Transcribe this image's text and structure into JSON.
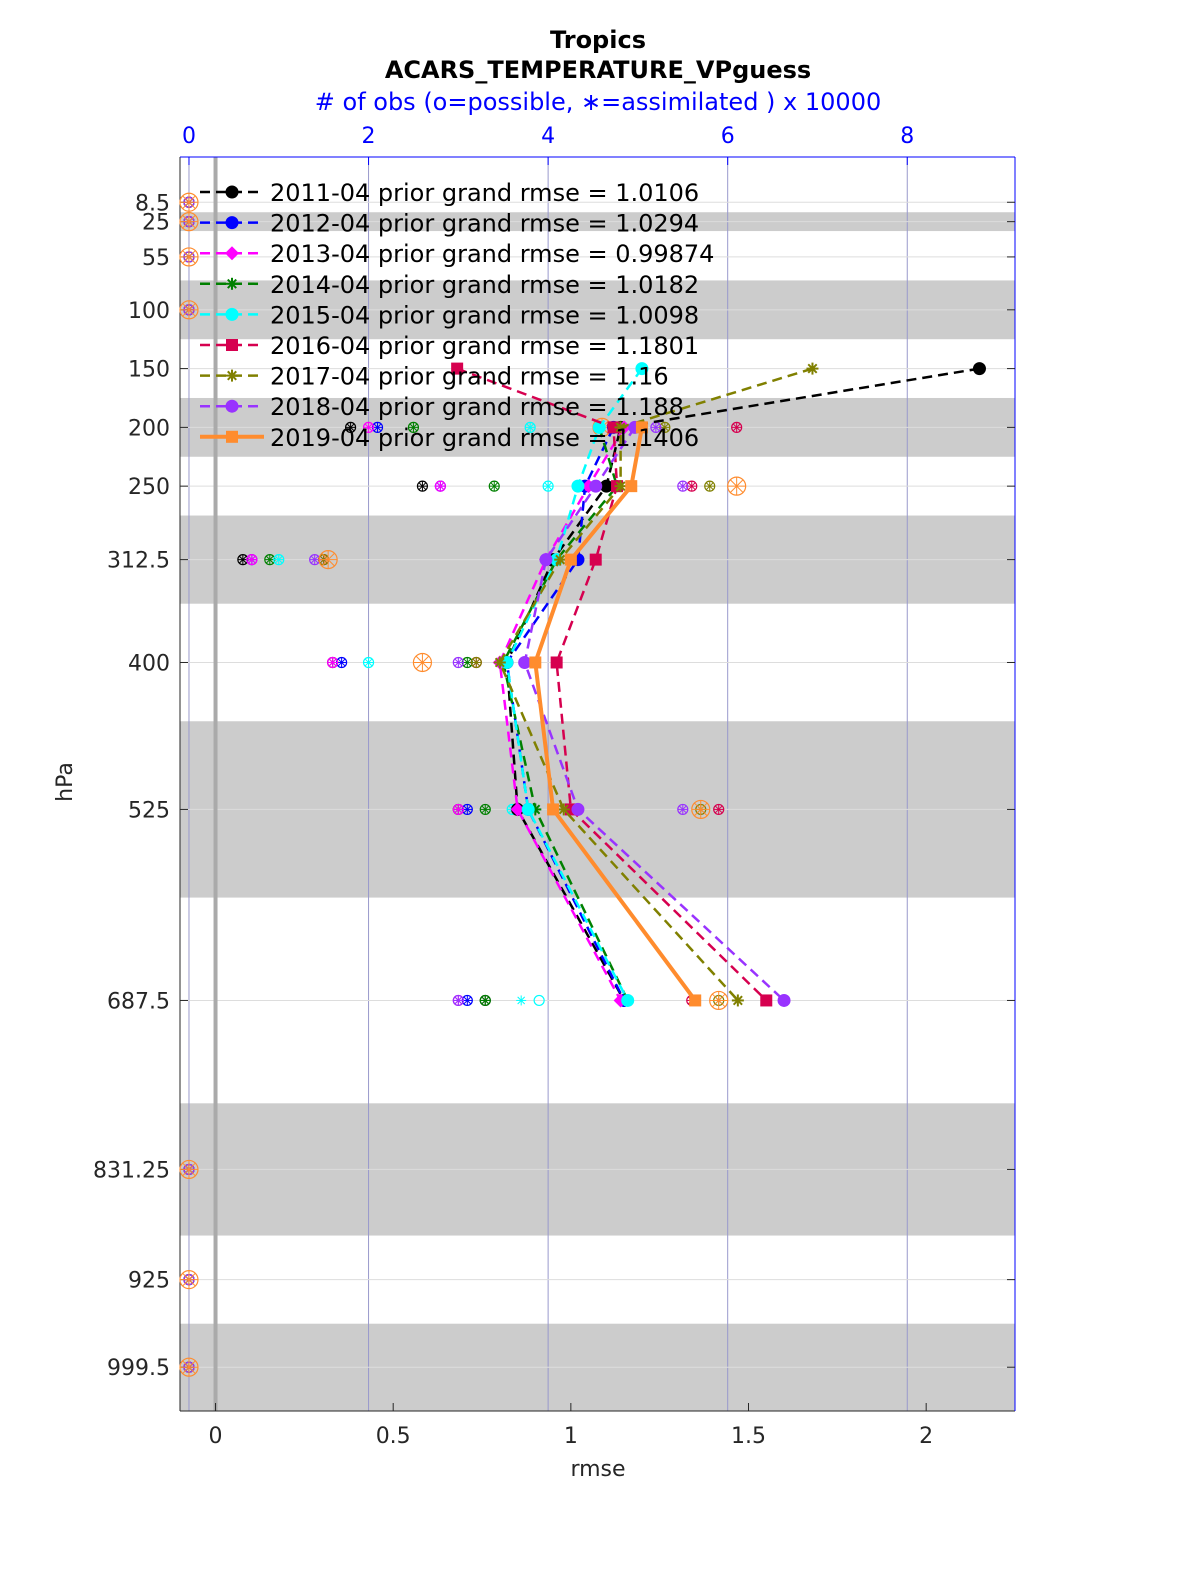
{
  "chart_data": {
    "type": "line",
    "title": "Tropics",
    "subtitle": "ACARS_TEMPERATURE_VPguess",
    "top_axis_label": "# of obs (o=possible, ∗=assimilated ) x 10000",
    "xlabel": "rmse",
    "ylabel": "hPa",
    "xlim": [
      -0.1,
      2.25
    ],
    "top_xlim": [
      -0.1,
      9.2
    ],
    "x_ticks": [
      "0",
      "0.5",
      "1",
      "1.5",
      "2"
    ],
    "x_tick_values": [
      0,
      0.5,
      1,
      1.5,
      2
    ],
    "top_ticks": [
      "0",
      "2",
      "4",
      "6",
      "8"
    ],
    "top_tick_values": [
      0,
      2,
      4,
      6,
      8
    ],
    "y_ticks": [
      "8.5",
      "25",
      "55",
      "100",
      "150",
      "200",
      "250",
      "312.5",
      "400",
      "525",
      "687.5",
      "831.25",
      "925",
      "999.5"
    ],
    "levels": [
      8.5,
      25,
      55,
      100,
      150,
      200,
      250,
      312.5,
      400,
      525,
      687.5,
      831.25,
      925,
      999.5
    ],
    "level_boundaries": [
      0,
      17,
      33,
      75,
      125,
      175,
      225,
      275,
      350,
      450,
      600,
      775,
      887.5,
      962.5,
      1036.75
    ],
    "ylim": [
      1036.75,
      -30
    ],
    "grid": true,
    "legend_position": "top-left",
    "series": [
      {
        "name": "2011-04 prior grand rmse = 1.0106",
        "color": "#000000",
        "marker": "circle",
        "style": "dashed",
        "values": [
          null,
          null,
          null,
          null,
          2.15,
          1.14,
          1.1,
          0.95,
          0.82,
          0.85,
          1.15,
          null,
          null,
          null
        ]
      },
      {
        "name": "2012-04 prior grand rmse = 1.0294",
        "color": "#0000ff",
        "marker": "circle",
        "style": "dashed",
        "values": [
          null,
          null,
          null,
          null,
          null,
          1.12,
          1.04,
          1.02,
          0.82,
          0.88,
          1.15,
          null,
          null,
          null
        ]
      },
      {
        "name": "2013-04 prior grand rmse = 0.99874",
        "color": "#ff00ff",
        "marker": "diamond",
        "style": "dashed",
        "values": [
          null,
          null,
          null,
          null,
          null,
          1.15,
          1.05,
          0.93,
          0.8,
          0.85,
          1.14,
          null,
          null,
          null
        ]
      },
      {
        "name": "2014-04 prior grand rmse = 1.0182",
        "color": "#008000",
        "marker": "star",
        "style": "dashed",
        "values": [
          null,
          null,
          null,
          null,
          null,
          1.08,
          1.13,
          0.96,
          0.81,
          0.9,
          1.16,
          null,
          null,
          null
        ]
      },
      {
        "name": "2015-04 prior grand rmse = 1.0098",
        "color": "#00ffff",
        "marker": "circle",
        "style": "dashed",
        "values": [
          null,
          null,
          null,
          null,
          1.2,
          1.08,
          1.02,
          0.96,
          0.82,
          0.88,
          1.16,
          null,
          null,
          null
        ]
      },
      {
        "name": "2016-04 prior grand rmse = 1.1801",
        "color": "#d6004f",
        "marker": "square",
        "style": "dashed",
        "values": [
          null,
          null,
          null,
          null,
          0.68,
          1.12,
          1.13,
          1.07,
          0.96,
          1.0,
          1.55,
          null,
          null,
          null
        ]
      },
      {
        "name": "2017-04 prior grand rmse = 1.16",
        "color": "#808000",
        "marker": "star",
        "style": "dashed",
        "values": [
          null,
          null,
          null,
          null,
          1.68,
          1.14,
          1.14,
          0.97,
          0.8,
          0.98,
          1.47,
          null,
          null,
          null
        ]
      },
      {
        "name": "2018-04 prior grand rmse = 1.188",
        "color": "#9933ff",
        "marker": "circle",
        "style": "dashed",
        "values": [
          null,
          null,
          null,
          null,
          null,
          1.18,
          1.07,
          0.93,
          0.87,
          1.02,
          1.6,
          null,
          null,
          null
        ]
      },
      {
        "name": "2019-04 prior grand rmse = 1.1406",
        "color": "#ff8c2e",
        "marker": "square",
        "style": "solid",
        "values": [
          null,
          null,
          null,
          null,
          null,
          1.2,
          1.17,
          1.0,
          0.9,
          0.95,
          1.35,
          null,
          null,
          null
        ]
      }
    ],
    "obs_counts": [
      {
        "color": "#000000",
        "possible": [
          0,
          0,
          0,
          0,
          null,
          1.8,
          2.6,
          0.6,
          1.6,
          3.0,
          3.3,
          0,
          0,
          0
        ],
        "assimilated": [
          0,
          0,
          0,
          0,
          null,
          1.8,
          2.6,
          0.6,
          1.6,
          3.0,
          3.3,
          0,
          0,
          0
        ]
      },
      {
        "color": "#0000ff",
        "possible": [
          0,
          0,
          0,
          0,
          null,
          2.1,
          2.8,
          0.7,
          1.7,
          3.1,
          3.1,
          0,
          0,
          0
        ],
        "assimilated": [
          0,
          0,
          0,
          0,
          null,
          2.1,
          2.8,
          0.7,
          1.7,
          3.1,
          3.1,
          0,
          0,
          0
        ]
      },
      {
        "color": "#ff00ff",
        "possible": [
          0,
          0,
          0,
          0,
          null,
          2.0,
          2.8,
          0.7,
          1.6,
          3.0,
          3.0,
          0,
          0,
          0
        ],
        "assimilated": [
          0,
          0,
          0,
          0,
          null,
          2.0,
          2.8,
          0.7,
          1.6,
          3.0,
          3.0,
          0,
          0,
          0
        ]
      },
      {
        "color": "#008000",
        "possible": [
          0,
          0,
          0,
          0,
          null,
          2.5,
          3.4,
          0.9,
          3.1,
          3.3,
          3.3,
          0,
          0,
          0
        ],
        "assimilated": [
          0,
          0,
          0,
          0,
          null,
          2.5,
          3.4,
          0.9,
          3.1,
          3.3,
          3.3,
          0,
          0,
          0
        ]
      },
      {
        "color": "#00ffff",
        "possible": [
          0,
          0,
          0,
          0,
          null,
          3.8,
          4.0,
          1.0,
          2.0,
          3.6,
          3.9,
          0,
          0,
          0
        ],
        "assimilated": [
          0,
          0,
          0,
          0,
          null,
          3.8,
          4.0,
          1.0,
          2.0,
          3.6,
          3.7,
          0,
          0,
          0
        ]
      },
      {
        "color": "#d6004f",
        "possible": [
          0,
          0,
          0,
          0,
          null,
          6.1,
          5.6,
          1.5,
          3.2,
          5.9,
          5.6,
          0,
          0,
          0
        ],
        "assimilated": [
          0,
          0,
          0,
          0,
          null,
          6.1,
          5.6,
          1.5,
          3.2,
          5.9,
          5.6,
          0,
          0,
          0
        ]
      },
      {
        "color": "#808000",
        "possible": [
          0,
          0,
          0,
          0,
          null,
          5.3,
          5.8,
          1.5,
          3.2,
          5.7,
          5.9,
          0,
          0,
          0
        ],
        "assimilated": [
          0,
          0,
          0,
          0,
          null,
          5.3,
          5.8,
          1.5,
          3.2,
          5.7,
          5.9,
          0,
          0,
          0
        ]
      },
      {
        "color": "#9933ff",
        "possible": [
          0,
          0,
          0,
          0,
          null,
          5.2,
          5.5,
          1.4,
          3.0,
          5.5,
          3.0,
          0,
          0,
          0
        ],
        "assimilated": [
          0,
          0,
          0,
          0,
          null,
          5.2,
          5.5,
          1.4,
          3.0,
          5.5,
          3.0,
          0,
          0,
          0
        ]
      },
      {
        "color": "#ff8c2e",
        "possible": [
          0,
          0,
          0,
          0,
          null,
          4.6,
          6.1,
          1.55,
          2.6,
          5.7,
          5.9,
          0,
          0,
          0
        ],
        "assimilated": [
          0,
          0,
          0,
          0,
          null,
          4.6,
          6.1,
          1.55,
          2.6,
          5.7,
          5.9,
          0,
          0,
          0
        ]
      }
    ]
  }
}
